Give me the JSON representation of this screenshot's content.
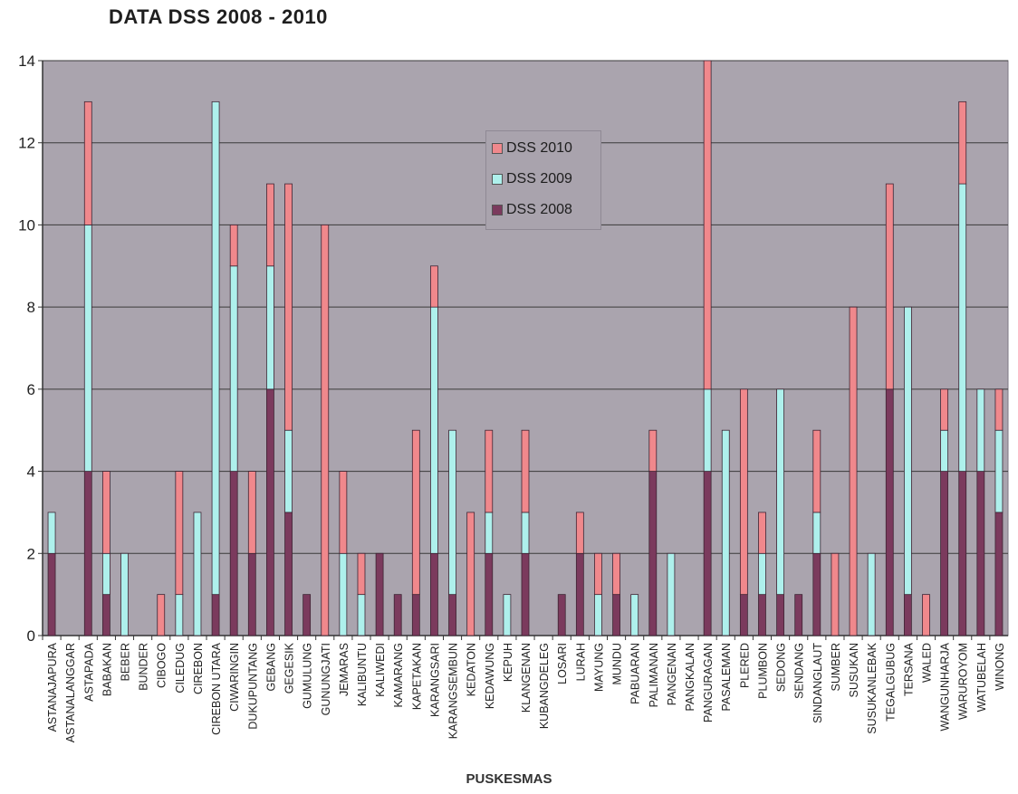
{
  "chart_data": {
    "type": "bar",
    "stacked": true,
    "title": "DATA DSS 2008 - 2010",
    "xlabel": "PUSKESMAS",
    "ylabel": "",
    "ylim": [
      0,
      14
    ],
    "yticks": [
      0,
      2,
      4,
      6,
      8,
      10,
      12,
      14
    ],
    "grid": true,
    "legend_position": "top-center",
    "categories": [
      "ASTANAJAPURA",
      "ASTANALANGGAR",
      "ASTAPADA",
      "BABAKAN",
      "BEBER",
      "BUNDER",
      "CIBOGO",
      "CILEDUG",
      "CIREBON",
      "CIREBON UTARA",
      "CIWARINGIN",
      "DUKUPUNTANG",
      "GEBANG",
      "GEGESIK",
      "GUMULUNG",
      "GUNUNGJATI",
      "JEMARAS",
      "KALIBUNTU",
      "KALIWEDI",
      "KAMARANG",
      "KAPETAKAN",
      "KARANGSARI",
      "KARANGSEMBUN",
      "KEDATON",
      "KEDAWUNG",
      "KEPUH",
      "KLANGENAN",
      "KUBANGDELEG",
      "LOSARI",
      "LURAH",
      "MAYUNG",
      "MUNDU",
      "PABUARAN",
      "PALIMANAN",
      "PANGENAN",
      "PANGKALAN",
      "PANGURAGAN",
      "PASALEMAN",
      "PLERED",
      "PLUMBON",
      "SEDONG",
      "SENDANG",
      "SINDANGLAUT",
      "SUMBER",
      "SUSUKAN",
      "SUSUKANLEBAK",
      "TEGALGUBUG",
      "TERSANA",
      "WALED",
      "WANGUNHARJA",
      "WARUROYOM",
      "WATUBELAH",
      "WINONG"
    ],
    "series": [
      {
        "name": "DSS 2008",
        "color": "#7b3a5d",
        "values": [
          2,
          0,
          4,
          1,
          0,
          0,
          0,
          0,
          0,
          1,
          4,
          2,
          6,
          3,
          1,
          0,
          0,
          0,
          2,
          1,
          1,
          2,
          1,
          0,
          2,
          0,
          2,
          0,
          1,
          2,
          0,
          1,
          0,
          4,
          0,
          0,
          4,
          0,
          1,
          1,
          1,
          1,
          2,
          0,
          0,
          0,
          6,
          1,
          0,
          4,
          4,
          4,
          3
        ]
      },
      {
        "name": "DSS 2009",
        "color": "#aef0ec",
        "values": [
          1,
          0,
          6,
          1,
          2,
          0,
          0,
          1,
          3,
          12,
          5,
          0,
          3,
          2,
          0,
          0,
          2,
          1,
          0,
          0,
          0,
          6,
          4,
          0,
          1,
          1,
          1,
          0,
          0,
          0,
          1,
          0,
          1,
          0,
          2,
          0,
          2,
          5,
          0,
          1,
          5,
          0,
          1,
          0,
          0,
          2,
          0,
          7,
          0,
          1,
          7,
          2,
          2
        ]
      },
      {
        "name": "DSS 2010",
        "color": "#f0888c",
        "values": [
          0,
          0,
          3,
          2,
          0,
          0,
          1,
          3,
          0,
          0,
          1,
          2,
          2,
          6,
          0,
          10,
          2,
          1,
          0,
          0,
          4,
          1,
          0,
          3,
          2,
          0,
          2,
          0,
          0,
          1,
          1,
          1,
          0,
          1,
          0,
          0,
          8,
          0,
          5,
          1,
          0,
          0,
          2,
          2,
          8,
          0,
          5,
          0,
          1,
          1,
          2,
          0,
          1
        ]
      }
    ],
    "legend": [
      {
        "name": "DSS 2010",
        "color": "#f0888c"
      },
      {
        "name": "DSS 2009",
        "color": "#aef0ec"
      },
      {
        "name": "DSS 2008",
        "color": "#7b3a5d"
      }
    ],
    "plot_background": "#aaa4ae"
  }
}
